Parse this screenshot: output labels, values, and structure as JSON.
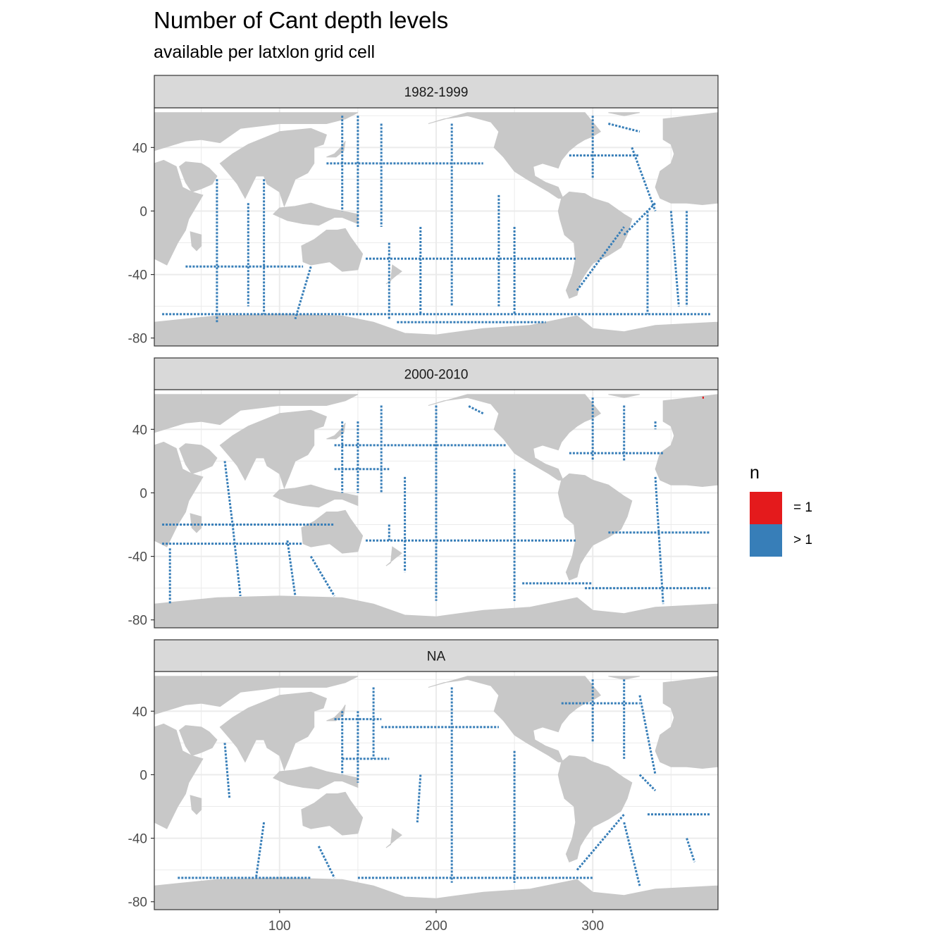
{
  "title": "Number of Cant depth levels",
  "subtitle": "available per latxlon grid cell",
  "legend": {
    "title": "n",
    "items": [
      {
        "label": "= 1",
        "color": "#e41a1c"
      },
      {
        "label": "> 1",
        "color": "#377eb8"
      }
    ]
  },
  "colors": {
    "land": "#c8c8c8",
    "ocean": "#ffffff",
    "strip": "#d9d9d9",
    "grid": "#ebebeb",
    "eq1": "#e41a1c",
    "gt1": "#377eb8"
  },
  "chart_data": {
    "type": "heatmap",
    "facet_by": "era",
    "facets": [
      "1982-1999",
      "2000-2010",
      "NA"
    ],
    "xlim": [
      20,
      380
    ],
    "ylim": [
      -85,
      65
    ],
    "x_ticks": [
      100,
      200,
      300
    ],
    "y_ticks": [
      40,
      0,
      -40,
      -80
    ],
    "grid": true,
    "legend_position": "right",
    "value_categories": [
      "= 1",
      "> 1"
    ],
    "tracks": [
      [
        {
          "n": "> 1",
          "points": [
            [
              60,
              20
            ],
            [
              60,
              -70
            ]
          ]
        },
        {
          "n": "> 1",
          "points": [
            [
              80,
              5
            ],
            [
              80,
              -60
            ]
          ]
        },
        {
          "n": "> 1",
          "points": [
            [
              90,
              20
            ],
            [
              90,
              -65
            ]
          ]
        },
        {
          "n": "> 1",
          "points": [
            [
              40,
              -35
            ],
            [
              115,
              -35
            ]
          ]
        },
        {
          "n": "> 1",
          "points": [
            [
              120,
              -35
            ],
            [
              110,
              -68
            ]
          ]
        },
        {
          "n": "> 1",
          "points": [
            [
              140,
              60
            ],
            [
              140,
              0
            ]
          ]
        },
        {
          "n": "> 1",
          "points": [
            [
              150,
              60
            ],
            [
              150,
              -10
            ]
          ]
        },
        {
          "n": "> 1",
          "points": [
            [
              165,
              55
            ],
            [
              165,
              -10
            ]
          ]
        },
        {
          "n": "> 1",
          "points": [
            [
              130,
              30
            ],
            [
              230,
              30
            ]
          ]
        },
        {
          "n": "> 1",
          "points": [
            [
              170,
              -20
            ],
            [
              170,
              -68
            ]
          ]
        },
        {
          "n": "> 1",
          "points": [
            [
              190,
              -10
            ],
            [
              190,
              -65
            ]
          ]
        },
        {
          "n": "> 1",
          "points": [
            [
              210,
              55
            ],
            [
              210,
              -60
            ]
          ]
        },
        {
          "n": "> 1",
          "points": [
            [
              155,
              -30
            ],
            [
              290,
              -30
            ]
          ]
        },
        {
          "n": "> 1",
          "points": [
            [
              240,
              10
            ],
            [
              240,
              -60
            ]
          ]
        },
        {
          "n": "> 1",
          "points": [
            [
              250,
              -10
            ],
            [
              250,
              -65
            ]
          ]
        },
        {
          "n": "> 1",
          "points": [
            [
              175,
              -70
            ],
            [
              270,
              -70
            ]
          ]
        },
        {
          "n": "> 1",
          "points": [
            [
              325,
              40
            ],
            [
              340,
              0
            ]
          ]
        },
        {
          "n": "> 1",
          "points": [
            [
              290,
              -50
            ],
            [
              320,
              -10
            ]
          ]
        },
        {
          "n": "> 1",
          "points": [
            [
              320,
              -15
            ],
            [
              340,
              5
            ]
          ]
        },
        {
          "n": "> 1",
          "points": [
            [
              335,
              0
            ],
            [
              335,
              -65
            ]
          ]
        },
        {
          "n": "> 1",
          "points": [
            [
              350,
              0
            ],
            [
              355,
              -60
            ]
          ]
        },
        {
          "n": "> 1",
          "points": [
            [
              360,
              0
            ],
            [
              360,
              -60
            ]
          ]
        },
        {
          "n": "> 1",
          "points": [
            [
              300,
              60
            ],
            [
              300,
              20
            ]
          ]
        },
        {
          "n": "> 1",
          "points": [
            [
              310,
              55
            ],
            [
              330,
              50
            ]
          ]
        },
        {
          "n": "> 1",
          "points": [
            [
              285,
              35
            ],
            [
              330,
              35
            ]
          ]
        },
        {
          "n": "> 1",
          "points": [
            [
              25,
              -65
            ],
            [
              375,
              -65
            ]
          ]
        }
      ],
      [
        {
          "n": "> 1",
          "points": [
            [
              65,
              20
            ],
            [
              70,
              -20
            ]
          ]
        },
        {
          "n": "> 1",
          "points": [
            [
              70,
              -20
            ],
            [
              75,
              -65
            ]
          ]
        },
        {
          "n": "> 1",
          "points": [
            [
              25,
              -20
            ],
            [
              135,
              -20
            ]
          ]
        },
        {
          "n": "> 1",
          "points": [
            [
              25,
              -32
            ],
            [
              115,
              -32
            ]
          ]
        },
        {
          "n": "> 1",
          "points": [
            [
              30,
              -35
            ],
            [
              30,
              -70
            ]
          ]
        },
        {
          "n": "> 1",
          "points": [
            [
              105,
              -30
            ],
            [
              110,
              -65
            ]
          ]
        },
        {
          "n": "> 1",
          "points": [
            [
              120,
              -40
            ],
            [
              135,
              -65
            ]
          ]
        },
        {
          "n": "> 1",
          "points": [
            [
              140,
              45
            ],
            [
              140,
              0
            ]
          ]
        },
        {
          "n": "> 1",
          "points": [
            [
              150,
              45
            ],
            [
              150,
              0
            ]
          ]
        },
        {
          "n": "> 1",
          "points": [
            [
              165,
              55
            ],
            [
              165,
              0
            ]
          ]
        },
        {
          "n": "> 1",
          "points": [
            [
              135,
              30
            ],
            [
              245,
              30
            ]
          ]
        },
        {
          "n": "> 1",
          "points": [
            [
              135,
              15
            ],
            [
              170,
              15
            ]
          ]
        },
        {
          "n": "> 1",
          "points": [
            [
              155,
              -30
            ],
            [
              290,
              -30
            ]
          ]
        },
        {
          "n": "> 1",
          "points": [
            [
              170,
              -20
            ],
            [
              170,
              -30
            ]
          ]
        },
        {
          "n": "> 1",
          "points": [
            [
              200,
              55
            ],
            [
              200,
              -68
            ]
          ]
        },
        {
          "n": "> 1",
          "points": [
            [
              180,
              10
            ],
            [
              180,
              -50
            ]
          ]
        },
        {
          "n": "> 1",
          "points": [
            [
              250,
              15
            ],
            [
              250,
              -68
            ]
          ]
        },
        {
          "n": "> 1",
          "points": [
            [
              230,
              50
            ],
            [
              220,
              55
            ]
          ]
        },
        {
          "n": "> 1",
          "points": [
            [
              300,
              60
            ],
            [
              300,
              20
            ]
          ]
        },
        {
          "n": "> 1",
          "points": [
            [
              320,
              55
            ],
            [
              320,
              20
            ]
          ]
        },
        {
          "n": "> 1",
          "points": [
            [
              285,
              25
            ],
            [
              345,
              25
            ]
          ]
        },
        {
          "n": "> 1",
          "points": [
            [
              310,
              -25
            ],
            [
              375,
              -25
            ]
          ]
        },
        {
          "n": "> 1",
          "points": [
            [
              340,
              10
            ],
            [
              345,
              -70
            ]
          ]
        },
        {
          "n": "> 1",
          "points": [
            [
              255,
              -57
            ],
            [
              300,
              -57
            ]
          ]
        },
        {
          "n": "> 1",
          "points": [
            [
              295,
              -60
            ],
            [
              375,
              -60
            ]
          ]
        },
        {
          "n": "> 1",
          "points": [
            [
              340,
              45
            ],
            [
              340,
              40
            ]
          ]
        },
        {
          "n": "= 1",
          "points": [
            [
              370,
              60
            ],
            [
              371,
              60
            ]
          ]
        }
      ],
      [
        {
          "n": "> 1",
          "points": [
            [
              65,
              20
            ],
            [
              68,
              -15
            ]
          ]
        },
        {
          "n": "> 1",
          "points": [
            [
              90,
              -30
            ],
            [
              85,
              -65
            ]
          ]
        },
        {
          "n": "> 1",
          "points": [
            [
              35,
              -65
            ],
            [
              120,
              -65
            ]
          ]
        },
        {
          "n": "> 1",
          "points": [
            [
              125,
              -45
            ],
            [
              135,
              -65
            ]
          ]
        },
        {
          "n": "> 1",
          "points": [
            [
              140,
              40
            ],
            [
              140,
              0
            ]
          ]
        },
        {
          "n": "> 1",
          "points": [
            [
              150,
              40
            ],
            [
              150,
              -5
            ]
          ]
        },
        {
          "n": "> 1",
          "points": [
            [
              160,
              55
            ],
            [
              160,
              10
            ]
          ]
        },
        {
          "n": "> 1",
          "points": [
            [
              135,
              35
            ],
            [
              165,
              35
            ]
          ]
        },
        {
          "n": "> 1",
          "points": [
            [
              140,
              10
            ],
            [
              170,
              10
            ]
          ]
        },
        {
          "n": "> 1",
          "points": [
            [
              165,
              30
            ],
            [
              240,
              30
            ]
          ]
        },
        {
          "n": "> 1",
          "points": [
            [
              210,
              55
            ],
            [
              210,
              -68
            ]
          ]
        },
        {
          "n": "> 1",
          "points": [
            [
              190,
              0
            ],
            [
              188,
              -30
            ]
          ]
        },
        {
          "n": "> 1",
          "points": [
            [
              250,
              15
            ],
            [
              250,
              -68
            ]
          ]
        },
        {
          "n": "> 1",
          "points": [
            [
              150,
              -65
            ],
            [
              300,
              -65
            ]
          ]
        },
        {
          "n": "> 1",
          "points": [
            [
              300,
              60
            ],
            [
              300,
              20
            ]
          ]
        },
        {
          "n": "> 1",
          "points": [
            [
              320,
              60
            ],
            [
              320,
              10
            ]
          ]
        },
        {
          "n": "> 1",
          "points": [
            [
              330,
              50
            ],
            [
              340,
              0
            ]
          ]
        },
        {
          "n": "> 1",
          "points": [
            [
              330,
              0
            ],
            [
              340,
              -10
            ]
          ]
        },
        {
          "n": "> 1",
          "points": [
            [
              335,
              -25
            ],
            [
              375,
              -25
            ]
          ]
        },
        {
          "n": "> 1",
          "points": [
            [
              290,
              -60
            ],
            [
              320,
              -25
            ]
          ]
        },
        {
          "n": "> 1",
          "points": [
            [
              320,
              -30
            ],
            [
              330,
              -70
            ]
          ]
        },
        {
          "n": "> 1",
          "points": [
            [
              280,
              45
            ],
            [
              330,
              45
            ]
          ]
        },
        {
          "n": "> 1",
          "points": [
            [
              360,
              -40
            ],
            [
              365,
              -55
            ]
          ]
        }
      ]
    ]
  }
}
